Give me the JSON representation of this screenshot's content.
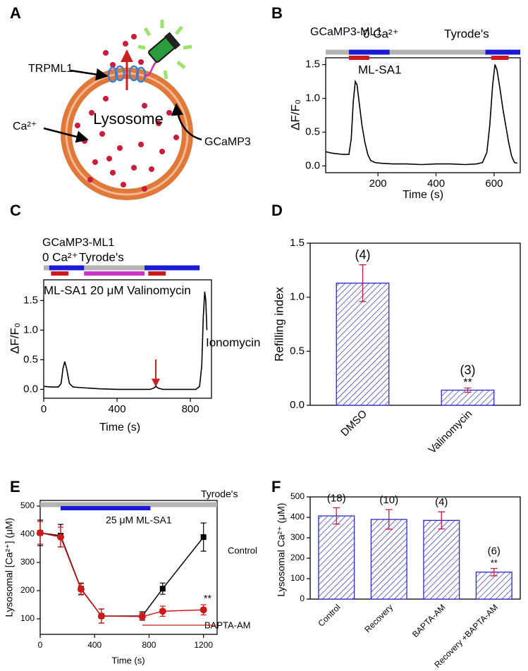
{
  "diagram": {
    "panel": "A",
    "labels": {
      "channel": "TRPML1",
      "sensor": "GCaMP3",
      "ion": "Ca²⁺",
      "organelle": "Lysosome"
    }
  },
  "chart_data": [
    {
      "type": "line",
      "panel": "B",
      "title": "GCaMP3-ML1",
      "xlabel": "Time (s)",
      "ylabel": "ΔF/F₀",
      "x": [
        20,
        40,
        60,
        80,
        100,
        108,
        115,
        122,
        128,
        135,
        145,
        155,
        165,
        175,
        190,
        210,
        250,
        300,
        350,
        400,
        450,
        500,
        540,
        560,
        575,
        585,
        595,
        603,
        610,
        620,
        630,
        640,
        650,
        660,
        670,
        680
      ],
      "series": [
        {
          "color": "#000000",
          "values": [
            0.21,
            0.19,
            0.18,
            0.17,
            0.17,
            0.4,
            0.95,
            1.25,
            1.2,
            0.95,
            0.6,
            0.35,
            0.17,
            0.08,
            0.05,
            0.04,
            0.03,
            0.03,
            0.02,
            0.03,
            0.03,
            0.02,
            0.03,
            0.05,
            0.2,
            0.6,
            1.2,
            1.5,
            1.42,
            1.15,
            0.85,
            0.6,
            0.35,
            0.15,
            0.05,
            0.04
          ]
        }
      ],
      "xlim": [
        20,
        690
      ],
      "xticks": [
        200,
        400,
        600
      ],
      "ylim": [
        -0.1,
        1.6
      ],
      "yticks": [
        {
          "value": 0,
          "label": "0.0"
        },
        {
          "value": 0.5,
          "label": "0.5"
        },
        {
          "value": 1,
          "label": "1.0"
        },
        {
          "value": 1.5,
          "label": "1.5"
        }
      ],
      "protocol": {
        "solution": [
          {
            "start": 20,
            "end": 690,
            "color": "#b3b3b3"
          },
          {
            "start": 100,
            "end": 240,
            "color": "#1a1ad6"
          },
          {
            "start": 570,
            "end": 690,
            "color": "#1a1ad6"
          }
        ],
        "drug": [
          {
            "start": 100,
            "end": 170,
            "color": "#cc1a1a"
          },
          {
            "start": 590,
            "end": 650,
            "color": "#cc1a1a"
          }
        ]
      },
      "annotations": [
        {
          "text": "0 Ca²⁺",
          "color": "#1a1ad6"
        },
        {
          "text": "Tyrode's",
          "color": "#b3b3b3"
        },
        {
          "text": "ML-SA1",
          "color": "#cc1a1a"
        }
      ]
    },
    {
      "type": "line",
      "panel": "C",
      "title": "GCaMP3-ML1",
      "xlabel": "Time (s)",
      "ylabel": "ΔF/F₀",
      "x": [
        0,
        40,
        80,
        95,
        105,
        115,
        125,
        140,
        160,
        200,
        300,
        400,
        500,
        580,
        600,
        612,
        625,
        650,
        750,
        830,
        850,
        862,
        870,
        878,
        884,
        890
      ],
      "series": [
        {
          "color": "#000000",
          "values": [
            0.05,
            0.04,
            0.04,
            0.1,
            0.35,
            0.47,
            0.35,
            0.1,
            0.04,
            0.03,
            0.01,
            0,
            0,
            0,
            0.02,
            0.05,
            0.02,
            0,
            0,
            0,
            0.05,
            0.4,
            1.2,
            1.65,
            1.5,
            1.0
          ]
        }
      ],
      "xlim": [
        0,
        915
      ],
      "xticks": [
        0,
        400,
        800
      ],
      "ylim": [
        -0.15,
        1.85
      ],
      "yticks": [
        {
          "value": 0,
          "label": "0.0"
        },
        {
          "value": 0.5,
          "label": "0.5"
        },
        {
          "value": 1,
          "label": "1.0"
        },
        {
          "value": 1.5,
          "label": "1.5"
        }
      ],
      "protocol": {
        "solution": [
          {
            "start": 0,
            "end": 850,
            "color": "#b3b3b3"
          },
          {
            "start": 30,
            "end": 220,
            "color": "#1a1ad6"
          },
          {
            "start": 550,
            "end": 850,
            "color": "#1a1ad6"
          }
        ],
        "drug": [
          {
            "start": 40,
            "end": 135,
            "color": "#cc1a1a"
          },
          {
            "start": 220,
            "end": 550,
            "color": "#cc33cc"
          },
          {
            "start": 570,
            "end": 665,
            "color": "#cc1a1a"
          }
        ]
      },
      "annotations": [
        {
          "text": "0 Ca²⁺",
          "color": "#1a1ad6"
        },
        {
          "text": "Tyrode's",
          "color": "#b3b3b3"
        },
        {
          "text": "ML-SA1",
          "color": "#cc1a1a"
        },
        {
          "text": "20 μM Valinomycin",
          "color": "#cc33cc"
        },
        {
          "text": "Ionomycin",
          "color": "#e08a1e"
        }
      ]
    },
    {
      "type": "bar",
      "panel": "D",
      "ylabel": "Refilling index",
      "categories": [
        "DMSO",
        "Valinomycin"
      ],
      "series": [
        {
          "color": "#2a2ad0",
          "values": [
            1.13,
            0.14
          ],
          "errors": [
            0.17,
            0.02
          ]
        }
      ],
      "error_color": "#cc1a3a",
      "ylim": [
        0,
        1.5
      ],
      "yticks": [
        {
          "value": 0,
          "label": "0.0"
        },
        {
          "value": 0.5,
          "label": "0.5"
        },
        {
          "value": 1,
          "label": "1.0"
        },
        {
          "value": 1.5,
          "label": "1.5"
        }
      ],
      "n_labels": [
        "(4)",
        "(3)"
      ],
      "significance": [
        null,
        "**"
      ]
    },
    {
      "type": "line",
      "panel": "E",
      "xlabel": "Time (s)",
      "ylabel": "Lysosomal [Ca²⁺] (μM)",
      "x": [
        0,
        150,
        300,
        450,
        750,
        900,
        1200
      ],
      "series": [
        {
          "name": "Control",
          "color": "#000000",
          "marker": "square",
          "values": [
            405,
            395,
            207,
            110,
            110,
            207,
            390
          ],
          "errors": [
            45,
            40,
            20,
            25,
            15,
            20,
            50
          ]
        },
        {
          "name": "BAPTA-AM",
          "color": "#cc1a1a",
          "marker": "circle",
          "values": [
            405,
            390,
            205,
            110,
            108,
            127,
            132
          ],
          "errors": [
            40,
            35,
            20,
            25,
            12,
            18,
            18
          ]
        }
      ],
      "xlim": [
        0,
        1300
      ],
      "xticks": [
        0,
        400,
        800,
        1200
      ],
      "ylim": [
        45,
        520
      ],
      "yticks": [
        100,
        200,
        300,
        400,
        500
      ],
      "protocol": {
        "solution": [
          {
            "start": 0,
            "end": 1300,
            "color": "#b3b3b3"
          }
        ],
        "drug": [
          {
            "start": 150,
            "end": 810,
            "color": "#1a1ad6"
          }
        ]
      },
      "treatment": {
        "start": 750,
        "end": 1290,
        "color": "#cc1a1a"
      },
      "annotations": [
        {
          "text": "Tyrode's",
          "color": "#b3b3b3"
        },
        {
          "text": "25 μM ML-SA1",
          "color": "#1a1ad6"
        },
        {
          "text": "**",
          "color": "#cc1a1a"
        }
      ]
    },
    {
      "type": "bar",
      "panel": "F",
      "ylabel": "Lysosomal Ca²⁺ (μM)",
      "categories": [
        "Control",
        "Recovery",
        "BAPTA-AM",
        "Recovery +BAPTA-AM"
      ],
      "series": [
        {
          "color": "#2a2ad0",
          "values": [
            407,
            390,
            385,
            132
          ],
          "errors": [
            40,
            48,
            42,
            18
          ]
        }
      ],
      "error_color": "#cc1a3a",
      "ylim": [
        0,
        500
      ],
      "yticks": [
        0,
        100,
        200,
        300,
        400,
        500
      ],
      "n_labels": [
        "(18)",
        "(10)",
        "(4)",
        "(6)"
      ],
      "significance": [
        null,
        null,
        null,
        "**"
      ]
    }
  ]
}
